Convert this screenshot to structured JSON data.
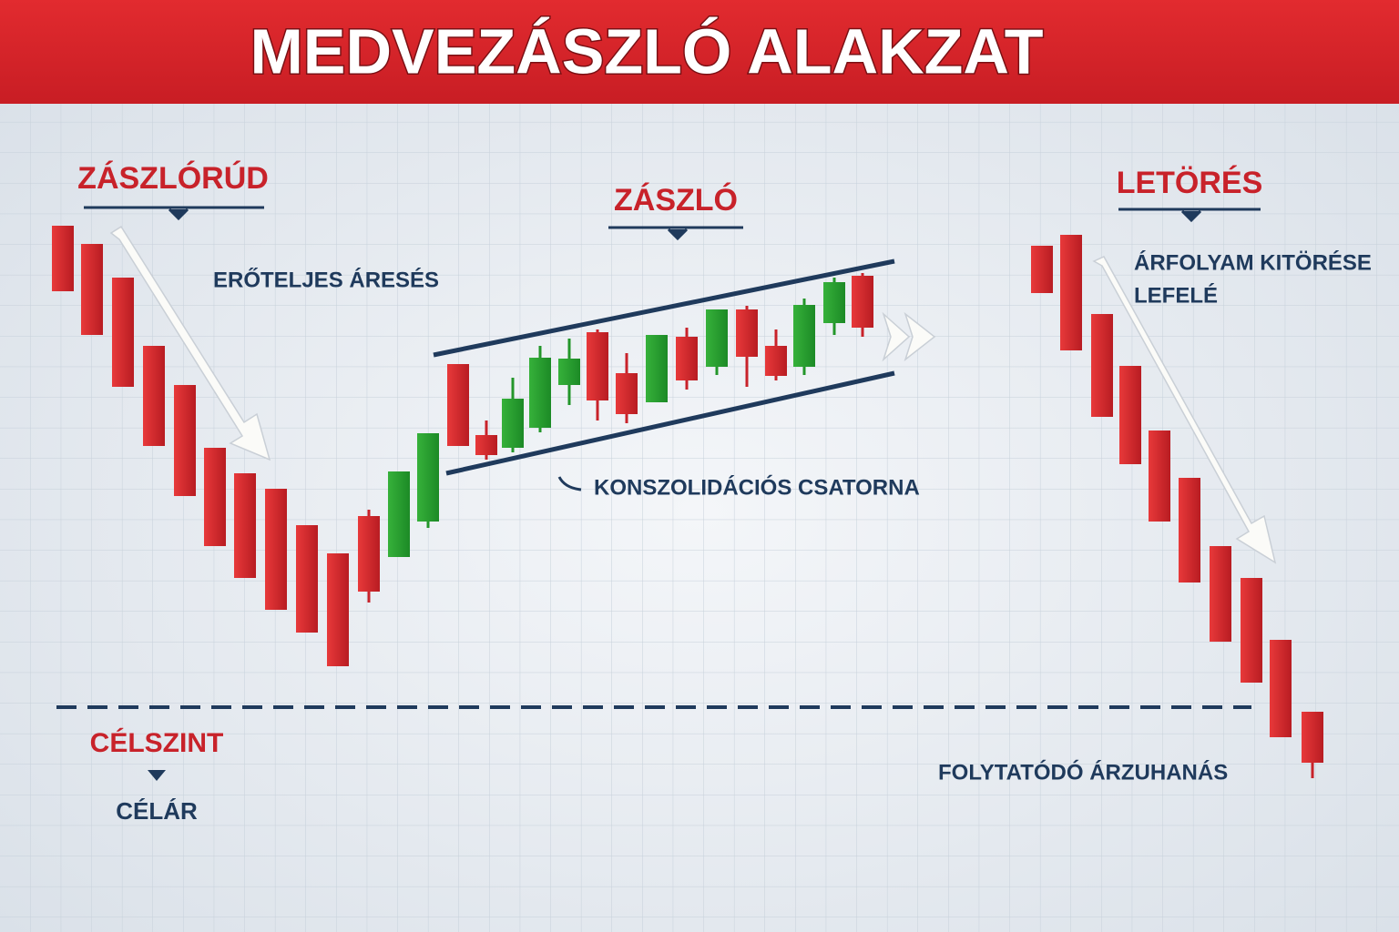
{
  "header": {
    "title": "MEDVEZÁSZLÓ ALAKZAT"
  },
  "sections": {
    "pole": {
      "label": "ZÁSZLÓRÚD",
      "note": "ERŐTELJES ÁRESÉS"
    },
    "flag": {
      "label": "ZÁSZLÓ",
      "note": "KONSZOLIDÁCIÓS CSATORNA"
    },
    "breakout": {
      "label": "LETÖRÉS",
      "note": [
        "ÁRFOLYAM KITÖRÉSE",
        "LEFELÉ"
      ]
    }
  },
  "target": {
    "label": "CÉLSZINT",
    "note": "CÉLÁR"
  },
  "continuation": "FOLYTATÓDÓ ÁRZUHANÁS"
}
